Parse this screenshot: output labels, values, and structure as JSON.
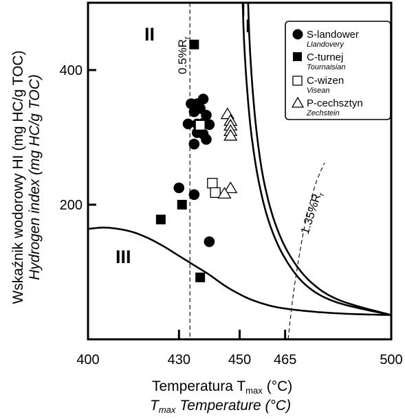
{
  "chart_data": {
    "type": "scatter",
    "xlabel": "Temperatura T",
    "xlabel_subscript": "max",
    "xlabel_unit": "(°C)",
    "xlabel_italic_prefix": "T",
    "xlabel_italic_subscript": "max",
    "xlabel_italic": "Temperature (°C)",
    "ylabel": "Wskaźnik wodorowy HI (mg HC/g TOC)",
    "ylabel_italic": "Hydrogen index (mg HC/g TOC)",
    "xlim": [
      400,
      500
    ],
    "ylim": [
      0,
      500
    ],
    "x_ticks": [
      400,
      430,
      450,
      465,
      500
    ],
    "y_ticks": [
      200,
      400
    ],
    "grid": false,
    "legend_position": "top-right",
    "series": [
      {
        "name": "S-landower",
        "name_en": "Llandovery",
        "marker": "filled-circle",
        "points": [
          [
            434,
            350
          ],
          [
            436,
            350
          ],
          [
            438,
            357
          ],
          [
            437,
            343
          ],
          [
            435,
            338
          ],
          [
            439,
            333
          ],
          [
            433,
            320
          ],
          [
            436,
            320
          ],
          [
            438,
            321
          ],
          [
            440,
            319
          ],
          [
            436,
            307
          ],
          [
            438,
            305
          ],
          [
            439,
            297
          ],
          [
            435,
            290
          ],
          [
            430,
            225
          ],
          [
            435,
            215
          ],
          [
            440,
            145
          ]
        ]
      },
      {
        "name": "C-turnej",
        "name_en": "Tournaisian",
        "marker": "filled-square",
        "points": [
          [
            435,
            438
          ],
          [
            431,
            200
          ],
          [
            424,
            178
          ],
          [
            437,
            92
          ]
        ]
      },
      {
        "name": "C-wizen",
        "name_en": "Visean",
        "marker": "open-square",
        "points": [
          [
            437,
            318
          ],
          [
            441,
            232
          ],
          [
            442,
            218
          ]
        ]
      },
      {
        "name": "P-cechsztyn",
        "name_en": "Zechstein",
        "marker": "open-triangle",
        "points": [
          [
            446,
            335
          ],
          [
            447,
            325
          ],
          [
            447,
            318
          ],
          [
            447,
            310
          ],
          [
            447,
            303
          ],
          [
            447,
            225
          ],
          [
            445,
            217
          ]
        ]
      }
    ],
    "annotations": [
      {
        "text": "0.5%R",
        "subscript": "r"
      },
      {
        "text": "1.35%R",
        "subscript": "r"
      },
      {
        "text": "I"
      },
      {
        "text": "II"
      },
      {
        "text": "III"
      }
    ]
  }
}
